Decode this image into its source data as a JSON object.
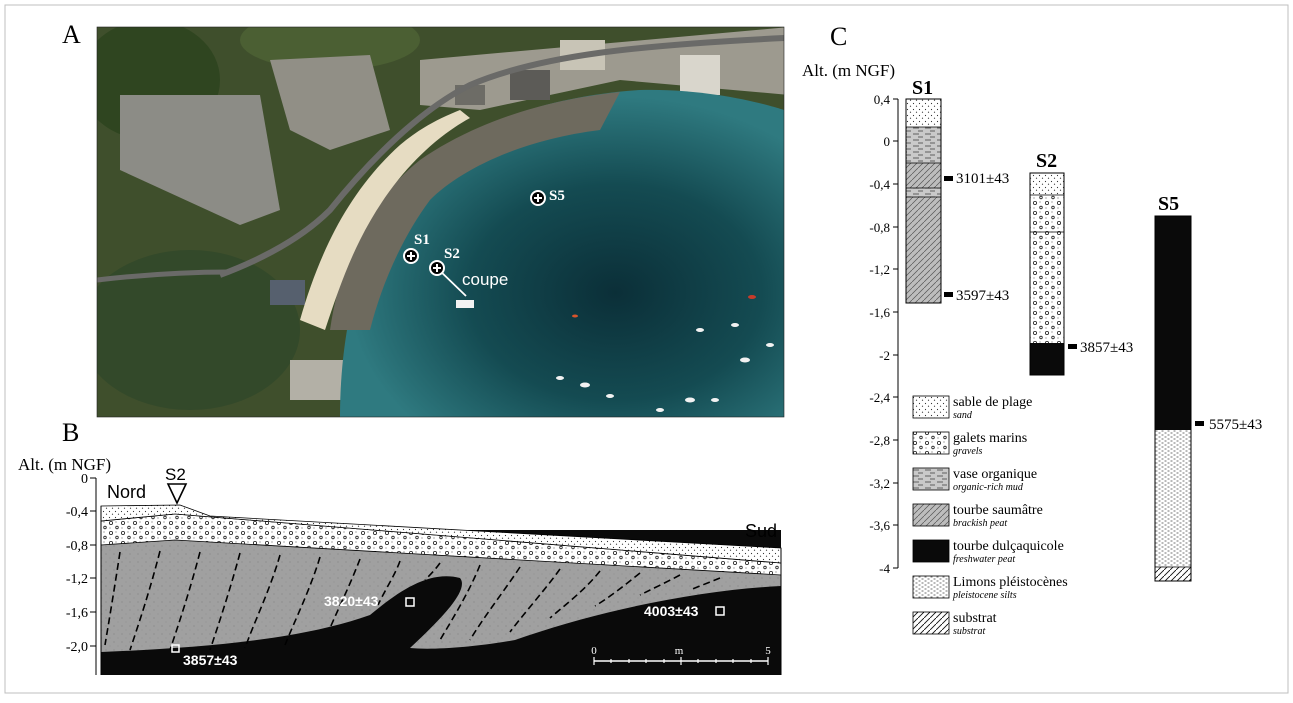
{
  "panel_a": {
    "label": "A",
    "sites": [
      {
        "id": "S1",
        "label": "S1"
      },
      {
        "id": "S2",
        "label": "S2"
      },
      {
        "id": "S5",
        "label": "S5"
      }
    ],
    "transect_label": "coupe"
  },
  "panel_b": {
    "label": "B",
    "axis_title": "Alt. (m NGF)",
    "y_ticks": [
      "0",
      "-0,4",
      "-0,8",
      "-1,2",
      "-1,6",
      "-2,0"
    ],
    "marker_label": "S2",
    "north_label": "Nord",
    "south_label": "Sud",
    "dates": [
      "3857±43",
      "3820±43",
      "4003±43"
    ],
    "scale": {
      "start": "0",
      "unit": "m",
      "end": "5"
    }
  },
  "panel_c": {
    "label": "C",
    "axis_title": "Alt. (m NGF)",
    "y_ticks": [
      "0,4",
      "0",
      "-0,4",
      "-0,8",
      "-1,2",
      "-1,6",
      "-2",
      "-2,4",
      "-2,8",
      "-3,2",
      "-3,6",
      "-4"
    ],
    "cores": [
      {
        "name": "S1",
        "dates": [
          "3101±43",
          "3597±43"
        ]
      },
      {
        "name": "S2",
        "dates": [
          "3857±43"
        ]
      },
      {
        "name": "S5",
        "dates": [
          "5575±43"
        ]
      }
    ],
    "legend": [
      {
        "label": "sable de plage",
        "sublabel": "sand",
        "pattern": "sand"
      },
      {
        "label": "galets marins",
        "sublabel": "gravels",
        "pattern": "gravel"
      },
      {
        "label": "vase organique",
        "sublabel": "organic-rich mud",
        "pattern": "mud"
      },
      {
        "label": "tourbe saumâtre",
        "sublabel": "brackish peat",
        "pattern": "brackish"
      },
      {
        "label": "tourbe dulçaquicole",
        "sublabel": "freshwater peat",
        "pattern": "fresh"
      },
      {
        "label": "Limons pléistocènes",
        "sublabel": "pleistocene silts",
        "pattern": "silt"
      },
      {
        "label": "substrat",
        "sublabel": "substrat",
        "pattern": "substrat"
      }
    ]
  },
  "colors": {
    "peat_black": "#0a0a0a",
    "brackish_grey": "#a6a6a6",
    "sea_dark": "#0f3a44",
    "sea_light": "#2f7a80"
  }
}
